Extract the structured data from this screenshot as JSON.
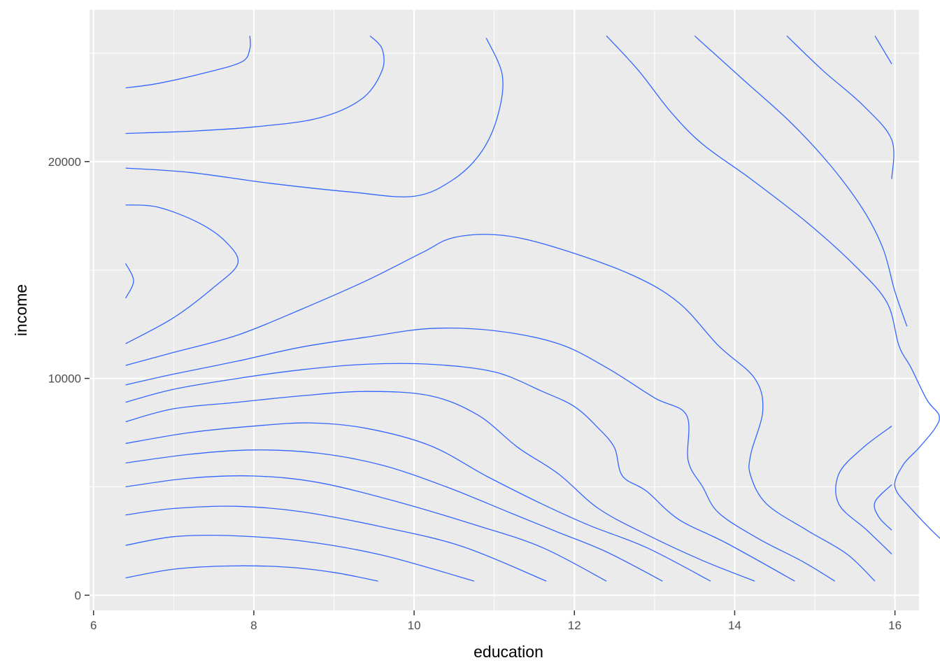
{
  "chart_data": {
    "type": "contour",
    "title": "",
    "xlabel": "education",
    "ylabel": "income",
    "xlim": [
      5.95,
      16.3
    ],
    "ylim": [
      -700,
      27000
    ],
    "x_ticks": [
      6,
      8,
      10,
      12,
      14,
      16
    ],
    "x_tick_labels": [
      "6",
      "8",
      "10",
      "12",
      "14",
      "16"
    ],
    "y_ticks": [
      0,
      10000,
      20000
    ],
    "y_tick_labels": [
      "0",
      "10000",
      "20000"
    ],
    "x_minor": [
      7,
      9,
      11,
      13,
      15
    ],
    "y_minor": [
      5000,
      15000,
      25000
    ],
    "grid": true,
    "legend": "none",
    "colors": {
      "panel": "#ebebeb",
      "grid": "#ffffff",
      "contour": "#3366ff",
      "tick": "#333333"
    },
    "series": [
      {
        "values": [
          [
            6.4,
            800
          ],
          [
            7.0,
            1200
          ],
          [
            7.7,
            1350
          ],
          [
            8.4,
            1300
          ],
          [
            9.0,
            1050
          ],
          [
            9.55,
            650
          ]
        ]
      },
      {
        "values": [
          [
            6.4,
            2300
          ],
          [
            7.0,
            2700
          ],
          [
            7.7,
            2750
          ],
          [
            8.6,
            2500
          ],
          [
            9.6,
            1850
          ],
          [
            10.75,
            650
          ]
        ]
      },
      {
        "values": [
          [
            6.4,
            3700
          ],
          [
            7.0,
            4000
          ],
          [
            7.8,
            4100
          ],
          [
            8.6,
            3850
          ],
          [
            9.6,
            3150
          ],
          [
            10.6,
            2250
          ],
          [
            11.65,
            650
          ]
        ]
      },
      {
        "values": [
          [
            6.4,
            5000
          ],
          [
            7.2,
            5400
          ],
          [
            8.0,
            5500
          ],
          [
            8.8,
            5200
          ],
          [
            9.8,
            4300
          ],
          [
            10.8,
            3200
          ],
          [
            11.6,
            2200
          ],
          [
            12.4,
            650
          ]
        ]
      },
      {
        "values": [
          [
            6.4,
            6100
          ],
          [
            7.2,
            6500
          ],
          [
            8.0,
            6700
          ],
          [
            8.8,
            6550
          ],
          [
            9.6,
            6000
          ],
          [
            10.4,
            5000
          ],
          [
            11.2,
            3800
          ],
          [
            11.8,
            2900
          ],
          [
            12.4,
            2000
          ],
          [
            13.1,
            650
          ]
        ]
      },
      {
        "values": [
          [
            6.4,
            7000
          ],
          [
            7.2,
            7500
          ],
          [
            8.0,
            7800
          ],
          [
            8.7,
            7950
          ],
          [
            9.4,
            7700
          ],
          [
            10.2,
            6900
          ],
          [
            10.9,
            5500
          ],
          [
            11.6,
            4200
          ],
          [
            12.2,
            3200
          ],
          [
            12.9,
            2200
          ],
          [
            13.7,
            650
          ]
        ]
      },
      {
        "values": [
          [
            6.4,
            8000
          ],
          [
            7.0,
            8600
          ],
          [
            7.8,
            8900
          ],
          [
            8.6,
            9200
          ],
          [
            9.4,
            9400
          ],
          [
            10.2,
            9200
          ],
          [
            10.8,
            8300
          ],
          [
            11.3,
            6800
          ],
          [
            11.8,
            5600
          ],
          [
            12.3,
            4000
          ],
          [
            12.9,
            2800
          ],
          [
            13.6,
            1600
          ],
          [
            14.25,
            650
          ]
        ]
      },
      {
        "values": [
          [
            6.4,
            8900
          ],
          [
            7.0,
            9500
          ],
          [
            7.8,
            10000
          ],
          [
            8.6,
            10400
          ],
          [
            9.4,
            10650
          ],
          [
            10.2,
            10650
          ],
          [
            11.0,
            10300
          ],
          [
            11.6,
            9400
          ],
          [
            12.0,
            8700
          ],
          [
            12.3,
            7700
          ],
          [
            12.5,
            6800
          ],
          [
            12.6,
            5500
          ],
          [
            12.9,
            4800
          ],
          [
            13.3,
            3500
          ],
          [
            13.9,
            2400
          ],
          [
            14.75,
            650
          ]
        ]
      },
      {
        "values": [
          [
            6.4,
            9700
          ],
          [
            7.0,
            10200
          ],
          [
            7.8,
            10800
          ],
          [
            8.6,
            11450
          ],
          [
            9.4,
            11900
          ],
          [
            10.2,
            12300
          ],
          [
            11.0,
            12200
          ],
          [
            11.8,
            11600
          ],
          [
            12.4,
            10500
          ],
          [
            13.0,
            9100
          ],
          [
            13.4,
            8300
          ],
          [
            13.42,
            6200
          ],
          [
            13.6,
            5000
          ],
          [
            13.8,
            3800
          ],
          [
            14.3,
            2600
          ],
          [
            14.85,
            1550
          ],
          [
            15.25,
            650
          ]
        ]
      },
      {
        "values": [
          [
            6.4,
            10600
          ],
          [
            7.0,
            11200
          ],
          [
            7.8,
            12000
          ],
          [
            8.6,
            13200
          ],
          [
            9.4,
            14500
          ],
          [
            10.1,
            15800
          ],
          [
            10.5,
            16500
          ],
          [
            11.1,
            16600
          ],
          [
            11.8,
            16000
          ],
          [
            12.7,
            14800
          ],
          [
            13.3,
            13500
          ],
          [
            13.8,
            11500
          ],
          [
            14.25,
            10000
          ],
          [
            14.35,
            8500
          ],
          [
            14.2,
            6500
          ],
          [
            14.2,
            5500
          ],
          [
            14.4,
            4200
          ],
          [
            14.9,
            3000
          ],
          [
            15.4,
            1900
          ],
          [
            15.75,
            650
          ]
        ]
      },
      {
        "values": [
          [
            6.4,
            11600
          ],
          [
            7.0,
            12800
          ],
          [
            7.5,
            14200
          ],
          [
            7.8,
            15300
          ],
          [
            7.65,
            16300
          ],
          [
            7.3,
            17200
          ],
          [
            6.8,
            17900
          ],
          [
            6.4,
            18000
          ]
        ]
      },
      {
        "values": [
          [
            6.4,
            13700
          ],
          [
            6.5,
            14500
          ],
          [
            6.4,
            15300
          ]
        ]
      },
      {
        "values": [
          [
            6.4,
            19700
          ],
          [
            7.2,
            19500
          ],
          [
            8.2,
            19000
          ],
          [
            9.2,
            18600
          ],
          [
            10.0,
            18400
          ],
          [
            10.5,
            19200
          ],
          [
            10.85,
            20500
          ],
          [
            11.05,
            22200
          ],
          [
            11.1,
            24000
          ],
          [
            10.9,
            25700
          ]
        ]
      },
      {
        "values": [
          [
            6.4,
            21300
          ],
          [
            7.2,
            21400
          ],
          [
            8.0,
            21600
          ],
          [
            8.8,
            22000
          ],
          [
            9.35,
            22900
          ],
          [
            9.6,
            24200
          ],
          [
            9.6,
            25200
          ],
          [
            9.45,
            25800
          ]
        ]
      },
      {
        "values": [
          [
            6.4,
            23400
          ],
          [
            6.8,
            23600
          ],
          [
            7.4,
            24100
          ],
          [
            7.85,
            24600
          ],
          [
            7.95,
            25200
          ],
          [
            7.95,
            25800
          ]
        ]
      },
      {
        "values": [
          [
            12.4,
            25800
          ],
          [
            12.8,
            24200
          ],
          [
            13.2,
            22300
          ],
          [
            13.6,
            20800
          ],
          [
            14.2,
            19200
          ],
          [
            14.9,
            17200
          ],
          [
            15.5,
            15200
          ],
          [
            15.9,
            13500
          ],
          [
            16.05,
            11500
          ],
          [
            16.2,
            10500
          ],
          [
            16.4,
            9000
          ],
          [
            16.55,
            8300
          ],
          [
            16.5,
            7700
          ],
          [
            16.3,
            6800
          ],
          [
            16.1,
            6000
          ],
          [
            16.0,
            5000
          ],
          [
            16.2,
            4000
          ],
          [
            16.6,
            2500
          ],
          [
            16.9,
            1800
          ]
        ]
      },
      {
        "values": [
          [
            13.5,
            25800
          ],
          [
            14.1,
            23800
          ],
          [
            14.7,
            21800
          ],
          [
            15.2,
            19800
          ],
          [
            15.6,
            17800
          ],
          [
            15.85,
            16000
          ],
          [
            16.0,
            14000
          ],
          [
            16.15,
            12400
          ]
        ]
      },
      {
        "values": [
          [
            14.65,
            25800
          ],
          [
            15.1,
            24200
          ],
          [
            15.6,
            22600
          ],
          [
            15.96,
            21000
          ],
          [
            15.96,
            19200
          ]
        ]
      },
      {
        "values": [
          [
            15.75,
            25800
          ],
          [
            15.96,
            24500
          ]
        ]
      },
      {
        "values": [
          [
            15.96,
            7800
          ],
          [
            15.6,
            6800
          ],
          [
            15.3,
            5600
          ],
          [
            15.3,
            4200
          ],
          [
            15.65,
            3000
          ],
          [
            15.96,
            1900
          ]
        ]
      },
      {
        "values": [
          [
            15.96,
            5100
          ],
          [
            15.75,
            4300
          ],
          [
            15.8,
            3600
          ],
          [
            15.96,
            3000
          ]
        ]
      }
    ]
  }
}
